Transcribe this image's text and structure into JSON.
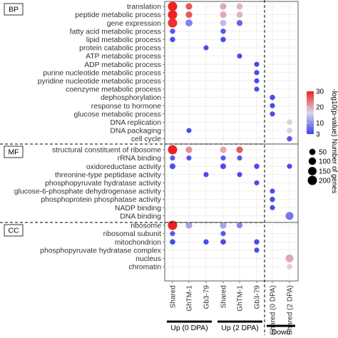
{
  "chart_data": {
    "type": "scatter",
    "columns": [
      "Shared",
      "GhTM-1",
      "Gb3-79",
      "Shared",
      "GhTM-1",
      "Gb3-79",
      "Shared (0 DPA)",
      "Shared (2 DPA)"
    ],
    "column_groups": [
      {
        "label": "Up (0 DPA)",
        "columns": [
          0,
          1,
          2
        ]
      },
      {
        "label": "Up (2 DPA)",
        "columns": [
          3,
          4,
          5
        ]
      },
      {
        "label": "Down",
        "columns": [
          6,
          7
        ]
      }
    ],
    "sections": [
      {
        "label": "BP",
        "terms": [
          "translation",
          "peptide metabolic process",
          "gene expression",
          "fatty acid metabolic process",
          "lipid metabolic process",
          "protein catabolic process",
          "ATP metabolic process",
          "ADP metabolic process",
          "purine nucleotide metabolic process",
          "pyridine nucleotide metabolic process",
          "coenzyme metabolic process",
          "dephosphorylation",
          "response to hormone",
          "glucose metabolic process",
          "DNA replication",
          "DNA packaging",
          "cell cycle"
        ]
      },
      {
        "label": "MF",
        "terms": [
          "structural constituent of ribosome",
          "rRNA binding",
          "oxidoreductase activity",
          "threonine-type peptidase activity",
          "phosphopyruvate hydratase activity",
          "glucose-6-phosphate dehydrogenase activity",
          "phosphoprotein phosphatase activity",
          "NADP binding",
          "DNA binding"
        ]
      },
      {
        "label": "CC",
        "terms": [
          "ribosome",
          "ribosomal subunit",
          "mitochondrion",
          "phosphopyruvate hydratase complex",
          "nucleus",
          "chromatin"
        ]
      }
    ],
    "points": [
      {
        "section": "BP",
        "term": "translation",
        "column": 0,
        "neg_log10_p": 30,
        "genes": 200
      },
      {
        "section": "BP",
        "term": "translation",
        "column": 1,
        "neg_log10_p": 26,
        "genes": 60
      },
      {
        "section": "BP",
        "term": "translation",
        "column": 3,
        "neg_log10_p": 20,
        "genes": 60
      },
      {
        "section": "BP",
        "term": "translation",
        "column": 4,
        "neg_log10_p": 19,
        "genes": 50
      },
      {
        "section": "BP",
        "term": "peptide metabolic process",
        "column": 0,
        "neg_log10_p": 30,
        "genes": 200
      },
      {
        "section": "BP",
        "term": "peptide metabolic process",
        "column": 1,
        "neg_log10_p": 26,
        "genes": 60
      },
      {
        "section": "BP",
        "term": "peptide metabolic process",
        "column": 3,
        "neg_log10_p": 20,
        "genes": 60
      },
      {
        "section": "BP",
        "term": "peptide metabolic process",
        "column": 4,
        "neg_log10_p": 19,
        "genes": 50
      },
      {
        "section": "BP",
        "term": "gene expression",
        "column": 0,
        "neg_log10_p": 29,
        "genes": 200
      },
      {
        "section": "BP",
        "term": "gene expression",
        "column": 1,
        "neg_log10_p": 9,
        "genes": 80
      },
      {
        "section": "BP",
        "term": "gene expression",
        "column": 3,
        "neg_log10_p": 14,
        "genes": 50
      },
      {
        "section": "BP",
        "term": "gene expression",
        "column": 4,
        "neg_log10_p": 6,
        "genes": 40
      },
      {
        "section": "BP",
        "term": "fatty acid metabolic process",
        "column": 0,
        "neg_log10_p": 5,
        "genes": 25
      },
      {
        "section": "BP",
        "term": "fatty acid metabolic process",
        "column": 3,
        "neg_log10_p": 5,
        "genes": 25
      },
      {
        "section": "BP",
        "term": "lipid metabolic process",
        "column": 0,
        "neg_log10_p": 4,
        "genes": 25
      },
      {
        "section": "BP",
        "term": "lipid metabolic process",
        "column": 3,
        "neg_log10_p": 4,
        "genes": 25
      },
      {
        "section": "BP",
        "term": "protein catabolic process",
        "column": 2,
        "neg_log10_p": 4,
        "genes": 20
      },
      {
        "section": "BP",
        "term": "ATP metabolic process",
        "column": 4,
        "neg_log10_p": 4,
        "genes": 20
      },
      {
        "section": "BP",
        "term": "ADP metabolic process",
        "column": 5,
        "neg_log10_p": 4,
        "genes": 20
      },
      {
        "section": "BP",
        "term": "purine nucleotide metabolic process",
        "column": 5,
        "neg_log10_p": 4,
        "genes": 20
      },
      {
        "section": "BP",
        "term": "pyridine nucleotide metabolic process",
        "column": 5,
        "neg_log10_p": 4,
        "genes": 20
      },
      {
        "section": "BP",
        "term": "coenzyme metabolic process",
        "column": 5,
        "neg_log10_p": 4,
        "genes": 20
      },
      {
        "section": "BP",
        "term": "dephosphorylation",
        "column": 6,
        "neg_log10_p": 4,
        "genes": 25
      },
      {
        "section": "BP",
        "term": "response to hormone",
        "column": 6,
        "neg_log10_p": 4,
        "genes": 20
      },
      {
        "section": "BP",
        "term": "glucose metabolic process",
        "column": 6,
        "neg_log10_p": 4,
        "genes": 20
      },
      {
        "section": "BP",
        "term": "DNA replication",
        "column": 7,
        "neg_log10_p": 17,
        "genes": 30
      },
      {
        "section": "BP",
        "term": "DNA packaging",
        "column": 1,
        "neg_log10_p": 4,
        "genes": 20
      },
      {
        "section": "BP",
        "term": "DNA packaging",
        "column": 7,
        "neg_log10_p": 17,
        "genes": 30
      },
      {
        "section": "BP",
        "term": "cell cycle",
        "column": 7,
        "neg_log10_p": 5,
        "genes": 25
      },
      {
        "section": "MF",
        "term": "structural constituent of ribosome",
        "column": 0,
        "neg_log10_p": 30,
        "genes": 200
      },
      {
        "section": "MF",
        "term": "structural constituent of ribosome",
        "column": 1,
        "neg_log10_p": 22,
        "genes": 60
      },
      {
        "section": "MF",
        "term": "structural constituent of ribosome",
        "column": 3,
        "neg_log10_p": 20,
        "genes": 60
      },
      {
        "section": "MF",
        "term": "structural constituent of ribosome",
        "column": 4,
        "neg_log10_p": 26,
        "genes": 60
      },
      {
        "section": "MF",
        "term": "rRNA binding",
        "column": 0,
        "neg_log10_p": 5,
        "genes": 20
      },
      {
        "section": "MF",
        "term": "rRNA binding",
        "column": 1,
        "neg_log10_p": 5,
        "genes": 20
      },
      {
        "section": "MF",
        "term": "rRNA binding",
        "column": 3,
        "neg_log10_p": 5,
        "genes": 20
      },
      {
        "section": "MF",
        "term": "rRNA binding",
        "column": 4,
        "neg_log10_p": 5,
        "genes": 20
      },
      {
        "section": "MF",
        "term": "oxidoreductase activity",
        "column": 0,
        "neg_log10_p": 4,
        "genes": 35
      },
      {
        "section": "MF",
        "term": "oxidoreductase activity",
        "column": 3,
        "neg_log10_p": 4,
        "genes": 35
      },
      {
        "section": "MF",
        "term": "oxidoreductase activity",
        "column": 5,
        "neg_log10_p": 4,
        "genes": 25
      },
      {
        "section": "MF",
        "term": "oxidoreductase activity",
        "column": 7,
        "neg_log10_p": 4,
        "genes": 20
      },
      {
        "section": "MF",
        "term": "threonine-type peptidase activity",
        "column": 2,
        "neg_log10_p": 4,
        "genes": 20
      },
      {
        "section": "MF",
        "term": "threonine-type peptidase activity",
        "column": 4,
        "neg_log10_p": 4,
        "genes": 20
      },
      {
        "section": "MF",
        "term": "phosphopyruvate hydratase activity",
        "column": 5,
        "neg_log10_p": 4,
        "genes": 20
      },
      {
        "section": "MF",
        "term": "glucose-6-phosphate dehydrogenase activity",
        "column": 6,
        "neg_log10_p": 4,
        "genes": 20
      },
      {
        "section": "MF",
        "term": "phosphoprotein phosphatase activity",
        "column": 6,
        "neg_log10_p": 4,
        "genes": 25
      },
      {
        "section": "MF",
        "term": "NADP binding",
        "column": 6,
        "neg_log10_p": 4,
        "genes": 20
      },
      {
        "section": "MF",
        "term": "DNA binding",
        "column": 7,
        "neg_log10_p": 8,
        "genes": 120
      },
      {
        "section": "CC",
        "term": "ribosome",
        "column": 0,
        "neg_log10_p": 30,
        "genes": 200
      },
      {
        "section": "CC",
        "term": "ribosome",
        "column": 1,
        "neg_log10_p": 12,
        "genes": 60
      },
      {
        "section": "CC",
        "term": "ribosome",
        "column": 3,
        "neg_log10_p": 12,
        "genes": 60
      },
      {
        "section": "CC",
        "term": "ribosome",
        "column": 4,
        "neg_log10_p": 9,
        "genes": 40
      },
      {
        "section": "CC",
        "term": "ribosomal subunit",
        "column": 0,
        "neg_log10_p": 5,
        "genes": 20
      },
      {
        "section": "CC",
        "term": "ribosomal subunit",
        "column": 3,
        "neg_log10_p": 5,
        "genes": 20
      },
      {
        "section": "CC",
        "term": "mitochondrion",
        "column": 0,
        "neg_log10_p": 4,
        "genes": 30
      },
      {
        "section": "CC",
        "term": "mitochondrion",
        "column": 2,
        "neg_log10_p": 4,
        "genes": 25
      },
      {
        "section": "CC",
        "term": "mitochondrion",
        "column": 3,
        "neg_log10_p": 4,
        "genes": 30
      },
      {
        "section": "CC",
        "term": "mitochondrion",
        "column": 5,
        "neg_log10_p": 4,
        "genes": 25
      },
      {
        "section": "CC",
        "term": "phosphopyruvate hydratase complex",
        "column": 5,
        "neg_log10_p": 4,
        "genes": 20
      },
      {
        "section": "CC",
        "term": "nucleus",
        "column": 7,
        "neg_log10_p": 20,
        "genes": 120
      },
      {
        "section": "CC",
        "term": "chromatin",
        "column": 7,
        "neg_log10_p": 17,
        "genes": 30
      }
    ],
    "color_legend": {
      "title": "-log10(p-value)",
      "ticks": [
        30,
        20,
        10,
        3
      ],
      "range": [
        3,
        30
      ],
      "colors": [
        "#4040ee",
        "#d8d8e6",
        "#ee2222"
      ]
    },
    "size_legend": {
      "title": "Number of genes",
      "ticks": [
        50,
        100,
        150,
        200
      ]
    },
    "grid": true
  }
}
